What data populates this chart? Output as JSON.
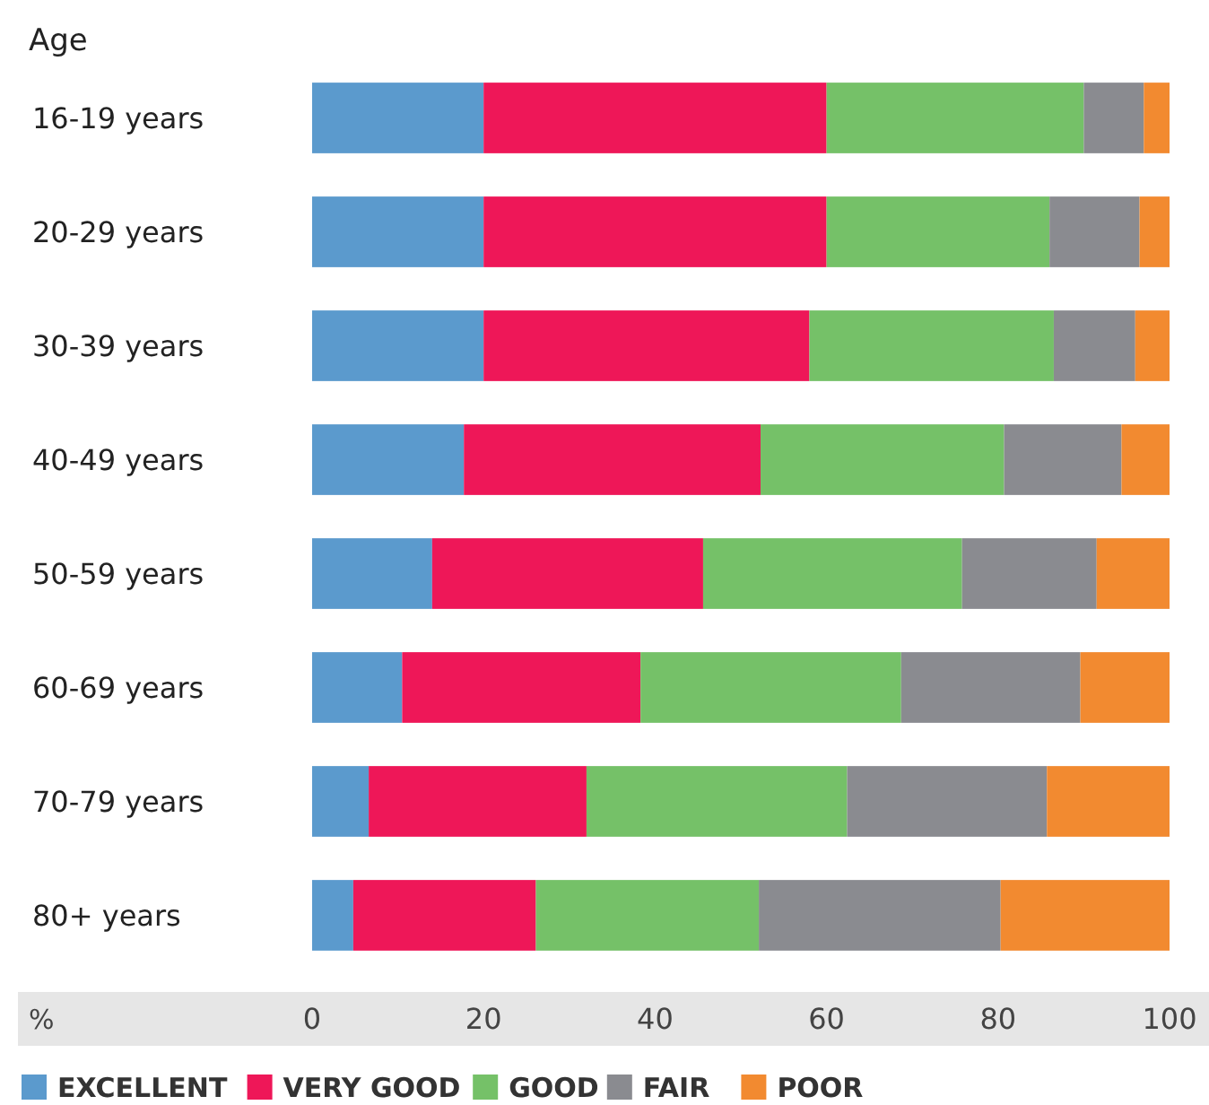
{
  "chart_data": {
    "type": "bar",
    "orientation": "horizontal",
    "stacked": true,
    "ylabel": "Age",
    "xlabel": "%",
    "categories": [
      "16-19 years",
      "20-29 years",
      "30-39 years",
      "40-49 years",
      "50-59 years",
      "60-69 years",
      "70-79 years",
      "80+ years"
    ],
    "series": [
      {
        "name": "EXCELLENT",
        "color": "#5b9acd",
        "values": [
          20,
          20,
          20,
          17.7,
          14,
          10.5,
          6.6,
          4.8
        ]
      },
      {
        "name": "VERY GOOD",
        "color": "#ee1758",
        "values": [
          40,
          40,
          38,
          34.6,
          31.6,
          27.8,
          25.4,
          21.3
        ]
      },
      {
        "name": "GOOD",
        "color": "#75c168",
        "values": [
          30,
          26,
          28.5,
          28.4,
          30.2,
          30.4,
          30.4,
          26
        ]
      },
      {
        "name": "FAIR",
        "color": "#8a8b90",
        "values": [
          7,
          10.5,
          9.5,
          13.7,
          15.7,
          20.9,
          23.3,
          28.2
        ]
      },
      {
        "name": "POOR",
        "color": "#f28a30",
        "values": [
          3,
          3.5,
          4,
          5.6,
          8.5,
          10.4,
          14.3,
          19.7
        ]
      }
    ],
    "xlim": [
      0,
      100
    ],
    "xticks": [
      0,
      20,
      40,
      60,
      80,
      100
    ],
    "grid": false,
    "legend": "bottom"
  }
}
